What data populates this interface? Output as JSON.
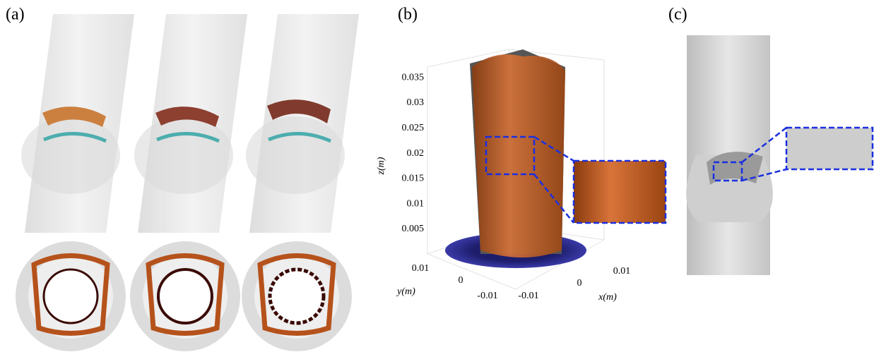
{
  "panels": [
    {
      "label": "(a)"
    },
    {
      "label": "(b)",
      "axes": {
        "z_label": "z(m)",
        "y_label": "y(m)",
        "x_label": "x(m)",
        "z_ticks": [
          "0.005",
          "0.01",
          "0.015",
          "0.02",
          "0.025",
          "0.03",
          "0.035"
        ],
        "y_ticks": [
          "0.01",
          "0",
          "-0.01"
        ],
        "x_ticks": [
          "-0.01",
          "0",
          "0.01"
        ]
      }
    },
    {
      "label": "(c)"
    }
  ]
}
